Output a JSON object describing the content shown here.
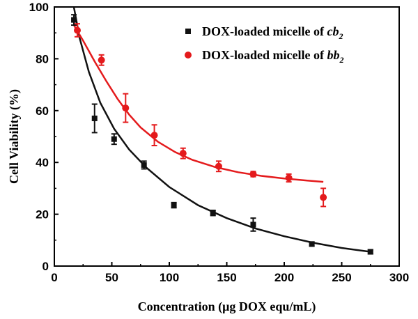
{
  "chart_data": {
    "type": "scatter",
    "xlabel": "Concentration (μg DOX equ/mL)",
    "ylabel": "Cell Viability (%)",
    "xlim": [
      0,
      300
    ],
    "ylim": [
      0,
      100
    ],
    "xticks": [
      0,
      50,
      100,
      150,
      200,
      250,
      300
    ],
    "yticks": [
      0,
      20,
      40,
      60,
      80,
      100
    ],
    "grid": false,
    "legend_position": "top-right",
    "series": [
      {
        "name": "DOX-loaded micelle of cb2",
        "legend_prefix": "DOX-loaded micelle of ",
        "legend_italic_base": "cb",
        "legend_subscript": "2",
        "color": "#111111",
        "marker": "square",
        "points": [
          {
            "x": 17,
            "y": 95,
            "err": 2
          },
          {
            "x": 35,
            "y": 57,
            "err": 5.5
          },
          {
            "x": 52,
            "y": 49,
            "err": 2
          },
          {
            "x": 78,
            "y": 39,
            "err": 1.5
          },
          {
            "x": 104,
            "y": 23.5,
            "err": 1
          },
          {
            "x": 138,
            "y": 20.5,
            "err": 1
          },
          {
            "x": 173,
            "y": 16,
            "err": 2.5
          },
          {
            "x": 224,
            "y": 8.5,
            "err": 0.8
          },
          {
            "x": 275,
            "y": 5.5,
            "err": 0.8
          }
        ],
        "fit": [
          [
            17,
            100
          ],
          [
            22,
            88
          ],
          [
            30,
            75
          ],
          [
            40,
            63
          ],
          [
            52,
            53
          ],
          [
            65,
            45
          ],
          [
            80,
            38
          ],
          [
            100,
            30.5
          ],
          [
            125,
            23.5
          ],
          [
            150,
            18.5
          ],
          [
            175,
            14.5
          ],
          [
            200,
            11.5
          ],
          [
            225,
            9
          ],
          [
            250,
            7
          ],
          [
            275,
            5.5
          ]
        ]
      },
      {
        "name": "DOX-loaded micelle of bb2",
        "legend_prefix": "DOX-loaded micelle of ",
        "legend_italic_base": "bb",
        "legend_subscript": "2",
        "color": "#e41a1c",
        "marker": "circle",
        "points": [
          {
            "x": 20,
            "y": 91,
            "err": 2.5
          },
          {
            "x": 41,
            "y": 79.5,
            "err": 2
          },
          {
            "x": 62,
            "y": 61,
            "err": 5.5
          },
          {
            "x": 87,
            "y": 50.5,
            "err": 4
          },
          {
            "x": 112,
            "y": 43.5,
            "err": 2
          },
          {
            "x": 143,
            "y": 38.5,
            "err": 2
          },
          {
            "x": 173,
            "y": 35.5,
            "err": 1
          },
          {
            "x": 204,
            "y": 34,
            "err": 1.5
          },
          {
            "x": 234,
            "y": 26.5,
            "err": 3.5
          }
        ],
        "fit": [
          [
            17,
            93
          ],
          [
            25,
            87
          ],
          [
            35,
            79
          ],
          [
            45,
            71.5
          ],
          [
            55,
            64.5
          ],
          [
            65,
            58.5
          ],
          [
            75,
            53.5
          ],
          [
            90,
            48
          ],
          [
            105,
            44
          ],
          [
            120,
            41
          ],
          [
            140,
            38.2
          ],
          [
            160,
            36.2
          ],
          [
            180,
            34.8
          ],
          [
            200,
            33.8
          ],
          [
            220,
            33
          ],
          [
            234,
            32.5
          ]
        ]
      }
    ]
  }
}
